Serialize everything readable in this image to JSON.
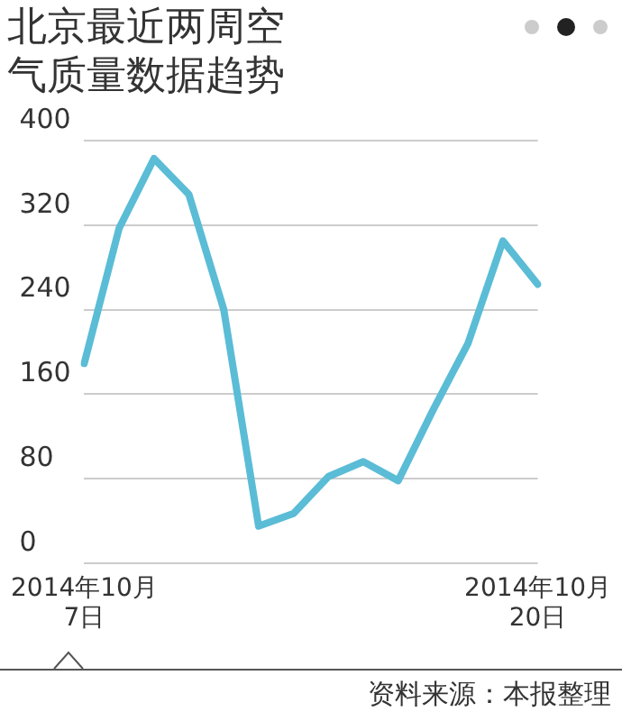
{
  "chart_data": {
    "type": "line",
    "title": "北京最近两周空气质量数据趋势",
    "categories": [
      "2014年10月7日",
      null,
      null,
      null,
      null,
      null,
      null,
      null,
      null,
      null,
      null,
      null,
      null,
      "2014年10月20日"
    ],
    "series": [
      {
        "color": "#5bbcd6",
        "values": [
          189,
          317,
          383,
          349,
          240,
          35,
          47,
          82,
          96,
          78,
          145,
          208,
          305,
          264
        ]
      }
    ],
    "ylim": [
      0,
      400
    ],
    "yticks": [
      0,
      80,
      160,
      240,
      320,
      400
    ],
    "grid": "y",
    "legend": false,
    "marker": "none",
    "line_style": "solid",
    "annotations": [
      "资料来源：本报整理"
    ]
  }
}
